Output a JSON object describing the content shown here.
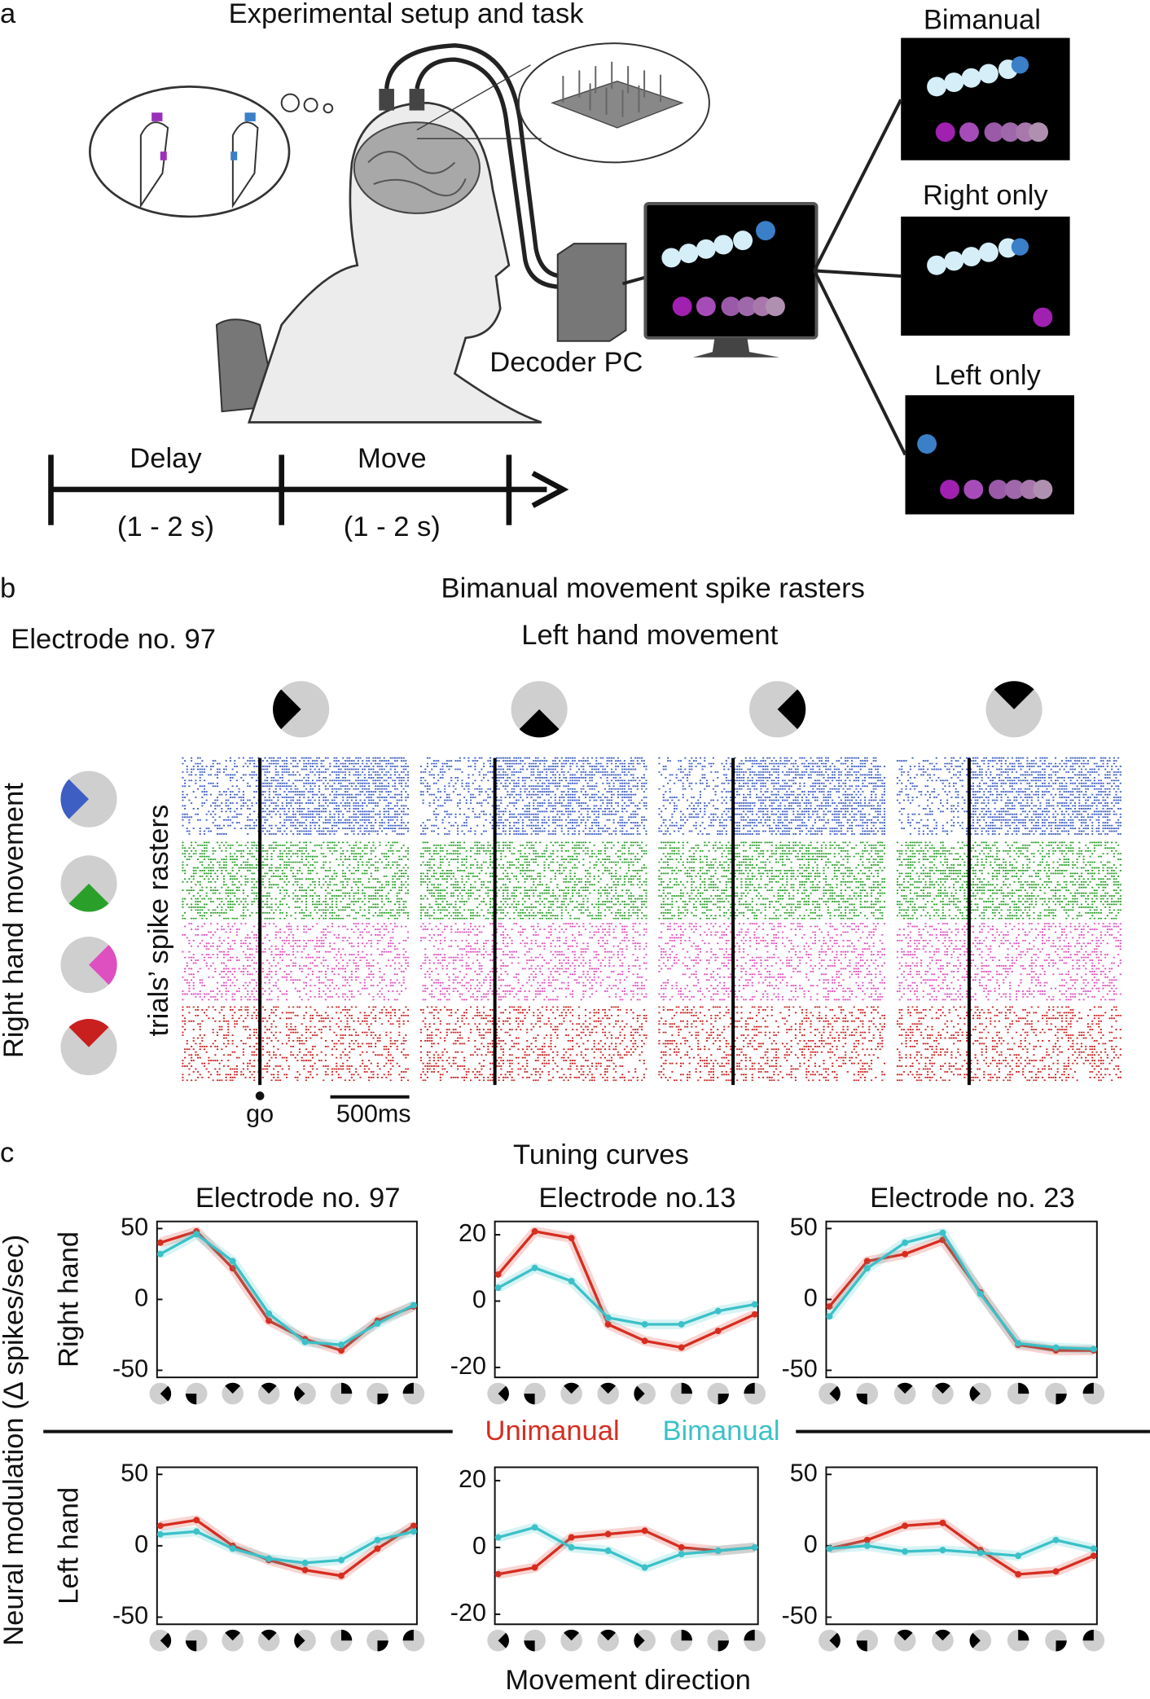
{
  "panel_labels": [
    "a",
    "b",
    "c"
  ],
  "panel_a": {
    "title": "Experimental setup and task",
    "decoder": "Decoder PC",
    "screens": [
      "Bimanual",
      "Right only",
      "Left only"
    ],
    "timeline": [
      {
        "phase": "Delay",
        "duration": "(1 - 2 s)"
      },
      {
        "phase": "Move",
        "duration": "(1 - 2 s)"
      }
    ]
  },
  "panel_b": {
    "title": "Bimanual movement spike rasters",
    "electrode": "Electrode no. 97",
    "left_label": "Left hand movement",
    "right_label": "Right hand movement",
    "y_label": "trials’ spike rasters",
    "go": "go",
    "scale": "500ms"
  },
  "panel_c": {
    "title": "Tuning curves",
    "ylabel": "Neural modulation (Δ spikes/sec)",
    "xlabel": "Movement direction"
  },
  "chart_data": [
    {
      "type": "line",
      "title": "Electrode no. 97",
      "ylabel": "Right hand",
      "categories": [
        null,
        null,
        null,
        null,
        null,
        null,
        null,
        null
      ],
      "ylim": [
        -55,
        55
      ],
      "yticks": [
        -50,
        0,
        50
      ],
      "series": [
        {
          "name": "Unimanual",
          "color": "#d62d20",
          "values": [
            40,
            48,
            22,
            -15,
            -28,
            -36,
            -15,
            -5
          ]
        },
        {
          "name": "Bimanual",
          "color": "#3cc1c8",
          "values": [
            32,
            46,
            27,
            -10,
            -30,
            -32,
            -17,
            -4
          ]
        }
      ]
    },
    {
      "type": "line",
      "title": "Electrode no.13",
      "categories": [
        null,
        null,
        null,
        null,
        null,
        null,
        null,
        null
      ],
      "ylim": [
        -23,
        24
      ],
      "yticks": [
        -20,
        0,
        20
      ],
      "series": [
        {
          "color": "#d62d20",
          "values": [
            8,
            21,
            19,
            -7,
            -12,
            -14,
            -9,
            -4
          ]
        },
        {
          "color": "#3cc1c8",
          "values": [
            4,
            10,
            6,
            -5,
            -7,
            -7,
            -3,
            -1
          ]
        }
      ]
    },
    {
      "type": "line",
      "title": "Electrode no. 23",
      "categories": [
        null,
        null,
        null,
        null,
        null,
        null,
        null,
        null
      ],
      "ylim": [
        -55,
        55
      ],
      "yticks": [
        -50,
        0,
        50
      ],
      "series": [
        {
          "color": "#d62d20",
          "values": [
            -5,
            27,
            32,
            42,
            5,
            -32,
            -36,
            -36
          ]
        },
        {
          "color": "#3cc1c8",
          "values": [
            -12,
            22,
            40,
            47,
            4,
            -31,
            -34,
            -35
          ]
        }
      ]
    },
    {
      "type": "line",
      "ylabel": "Left hand",
      "categories": [
        null,
        null,
        null,
        null,
        null,
        null,
        null,
        null
      ],
      "ylim": [
        -55,
        55
      ],
      "yticks": [
        -50,
        0,
        50
      ],
      "series": [
        {
          "color": "#d62d20",
          "values": [
            14,
            18,
            0,
            -10,
            -17,
            -21,
            -2,
            14
          ]
        },
        {
          "color": "#3cc1c8",
          "values": [
            8,
            10,
            -2,
            -9,
            -12,
            -10,
            4,
            10
          ]
        }
      ]
    },
    {
      "type": "line",
      "categories": [
        null,
        null,
        null,
        null,
        null,
        null,
        null,
        null
      ],
      "ylim": [
        -23,
        24
      ],
      "yticks": [
        -20,
        0,
        20
      ],
      "series": [
        {
          "color": "#d62d20",
          "values": [
            -8,
            -6,
            3,
            4,
            5,
            0,
            -1,
            0
          ]
        },
        {
          "color": "#3cc1c8",
          "values": [
            3,
            6,
            0,
            -1,
            -6,
            -2,
            -1,
            0
          ]
        }
      ]
    },
    {
      "type": "line",
      "categories": [
        null,
        null,
        null,
        null,
        null,
        null,
        null,
        null
      ],
      "ylim": [
        -55,
        55
      ],
      "yticks": [
        -50,
        0,
        50
      ],
      "series": [
        {
          "color": "#d62d20",
          "values": [
            -2,
            4,
            14,
            16,
            -3,
            -20,
            -18,
            -7
          ]
        },
        {
          "color": "#3cc1c8",
          "values": [
            -2,
            0,
            -4,
            -3,
            -5,
            -7,
            4,
            -2
          ]
        }
      ]
    }
  ]
}
